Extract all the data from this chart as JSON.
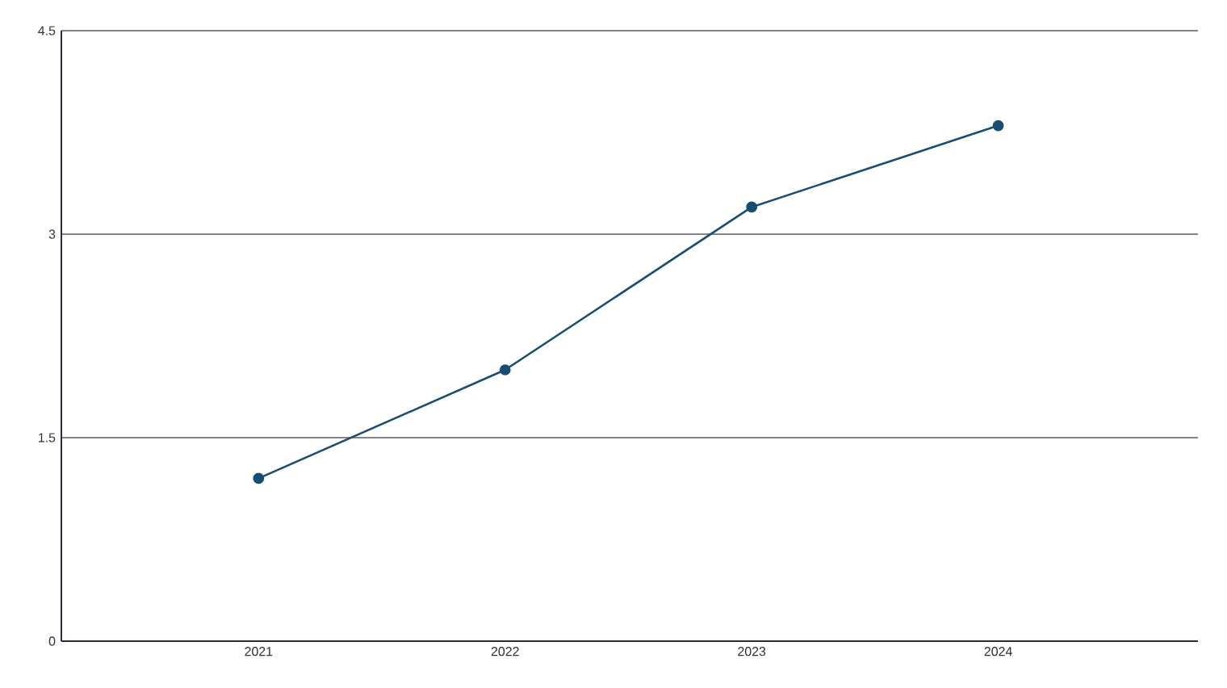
{
  "chart_data": {
    "type": "line",
    "categories": [
      "2021",
      "2022",
      "2023",
      "2024"
    ],
    "series": [
      {
        "color": "#174e72",
        "values": [
          1.2,
          2.0,
          3.2,
          3.8
        ]
      }
    ],
    "ylim": [
      0,
      4.5
    ],
    "yticks": [
      0,
      1.5,
      3,
      4.5
    ],
    "grid": "y",
    "marker": "circle",
    "line_style": "solid"
  }
}
